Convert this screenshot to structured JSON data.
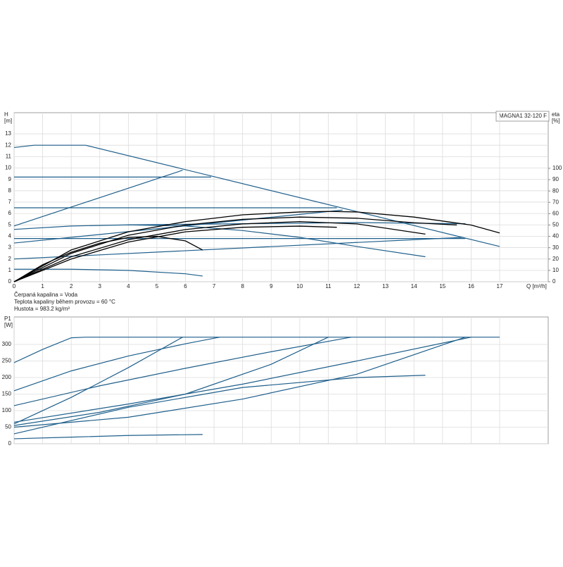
{
  "chart_data": [
    {
      "type": "line",
      "title": "MAGNA1 32-120 F",
      "ylabel": "H",
      "yunit": "[m]",
      "y2label": "eta",
      "y2unit": "[%]",
      "xlabel": "Q [m³/h]",
      "notes": [
        "Čerpaná kapalina = Voda",
        "Teplota kapaliny během provozu = 60 °C",
        "Hustota = 983.2 kg/m³"
      ],
      "xlim": [
        0,
        18.7
      ],
      "xticks": [
        0,
        1,
        2,
        3,
        4,
        5,
        6,
        7,
        8,
        9,
        10,
        11,
        12,
        13,
        14,
        15,
        16,
        17
      ],
      "ylim": [
        0,
        14.86
      ],
      "yticks": [
        0,
        1,
        2,
        3,
        4,
        5,
        6,
        7,
        8,
        9,
        10,
        11,
        12,
        13
      ],
      "y2lim": [
        0,
        149
      ],
      "y2ticks": [
        0,
        10,
        20,
        30,
        40,
        50,
        60,
        70,
        80,
        90,
        100
      ],
      "grid": true,
      "series": [
        {
          "color": "#1f5f8b",
          "x": [
            0,
            0.7,
            2.5,
            17
          ],
          "values": [
            11.8,
            12,
            12,
            3.1
          ]
        },
        {
          "color": "#1f5f8b",
          "x": [
            0,
            6.9
          ],
          "values": [
            9.2,
            9.2
          ]
        },
        {
          "color": "#1f5f8b",
          "x": [
            0,
            11.3
          ],
          "values": [
            6.5,
            6.5
          ]
        },
        {
          "color": "#1f5f8b",
          "x": [
            0,
            15.8
          ],
          "values": [
            3.8,
            3.8
          ]
        },
        {
          "color": "#1f5f8b",
          "x": [
            0,
            5.9
          ],
          "values": [
            4.9,
            9.8
          ]
        },
        {
          "color": "#1f5f8b",
          "x": [
            0,
            11.5
          ],
          "values": [
            3.4,
            6.3
          ]
        },
        {
          "color": "#1f5f8b",
          "x": [
            0,
            15.7
          ],
          "values": [
            2,
            3.9
          ]
        },
        {
          "color": "#1f5f8b",
          "x": [
            0,
            2,
            4,
            6,
            8,
            10,
            12,
            14.4
          ],
          "values": [
            4.6,
            4.9,
            5.0,
            4.9,
            4.5,
            3.9,
            3.1,
            2.2
          ]
        },
        {
          "color": "#1f5f8b",
          "x": [
            0,
            2,
            4,
            6,
            6.6
          ],
          "values": [
            1.1,
            1.1,
            1.0,
            0.7,
            0.5
          ]
        },
        {
          "color": "#1f5f8b",
          "x": [
            4,
            8,
            12,
            15.8
          ],
          "values": [
            5.0,
            5.1,
            5.2,
            5.1
          ]
        },
        {
          "color": "#000000",
          "axis": "y2",
          "x": [
            0,
            2,
            4,
            6,
            8,
            10,
            11,
            12,
            14,
            16,
            17
          ],
          "values": [
            0,
            28,
            44,
            53,
            59,
            61.5,
            62,
            61.5,
            57,
            50,
            43
          ]
        },
        {
          "color": "#000000",
          "axis": "y2",
          "x": [
            0,
            2,
            4,
            6,
            8,
            10,
            12,
            14,
            15.5
          ],
          "values": [
            0,
            25,
            41,
            50,
            55,
            57,
            56,
            52,
            50
          ]
        },
        {
          "color": "#000000",
          "axis": "y2",
          "x": [
            0,
            2,
            4,
            6,
            8,
            10,
            12,
            14.4
          ],
          "values": [
            0,
            22,
            37,
            46,
            51,
            53,
            51,
            42
          ]
        },
        {
          "color": "#000000",
          "axis": "y2",
          "x": [
            0,
            2,
            4,
            6,
            8,
            10,
            11.3
          ],
          "values": [
            0,
            20,
            35,
            44,
            48,
            49,
            48
          ]
        },
        {
          "color": "#000000",
          "axis": "y2",
          "x": [
            0,
            1,
            2,
            3,
            4,
            5,
            6,
            6.6
          ],
          "values": [
            0,
            15,
            26,
            34,
            39,
            40,
            36,
            28
          ]
        }
      ]
    },
    {
      "type": "line",
      "ylabel": "P1",
      "yunit": "[W]",
      "xlim": [
        0,
        18.7
      ],
      "ylim": [
        0,
        383
      ],
      "yticks": [
        0,
        50,
        100,
        150,
        200,
        250,
        300
      ],
      "grid": true,
      "series": [
        {
          "color": "#1f5f8b",
          "x": [
            0,
            1,
            2,
            2.5,
            17
          ],
          "values": [
            245,
            285,
            320,
            322,
            322
          ]
        },
        {
          "color": "#1f5f8b",
          "x": [
            0,
            2,
            4,
            6,
            7.2
          ],
          "values": [
            160,
            220,
            265,
            302,
            322
          ]
        },
        {
          "color": "#1f5f8b",
          "x": [
            0,
            3,
            6,
            9,
            11.8
          ],
          "values": [
            115,
            175,
            228,
            278,
            322
          ]
        },
        {
          "color": "#1f5f8b",
          "x": [
            0,
            4,
            8,
            12,
            16
          ],
          "values": [
            65,
            120,
            180,
            250,
            322
          ]
        },
        {
          "color": "#1f5f8b",
          "x": [
            0,
            2,
            4,
            5.9
          ],
          "values": [
            60,
            140,
            230,
            322
          ]
        },
        {
          "color": "#1f5f8b",
          "x": [
            0,
            3,
            6,
            9,
            11
          ],
          "values": [
            55,
            95,
            150,
            240,
            322
          ]
        },
        {
          "color": "#1f5f8b",
          "x": [
            0,
            4,
            8,
            12,
            15.8
          ],
          "values": [
            50,
            80,
            135,
            210,
            322
          ]
        },
        {
          "color": "#1f5f8b",
          "x": [
            0,
            4,
            8,
            12,
            14.4
          ],
          "values": [
            30,
            110,
            170,
            200,
            207
          ]
        },
        {
          "color": "#1f5f8b",
          "x": [
            0,
            2,
            4,
            6.6
          ],
          "values": [
            15,
            20,
            25,
            28
          ]
        }
      ]
    }
  ]
}
